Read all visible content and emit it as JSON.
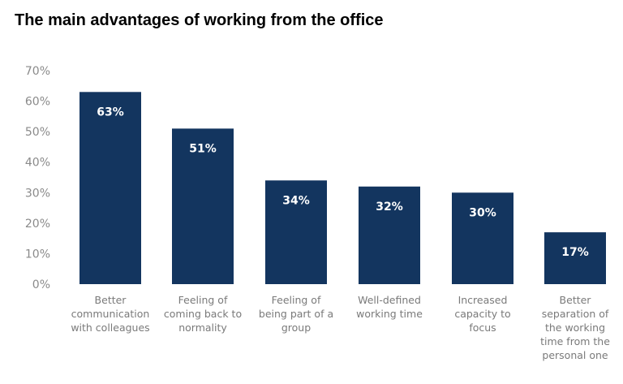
{
  "chart_data": {
    "type": "bar",
    "title": "The main advantages of working from the office",
    "xlabel": "",
    "ylabel": "",
    "ylim": [
      0,
      70
    ],
    "yticks": [
      "0%",
      "10%",
      "20%",
      "30%",
      "40%",
      "50%",
      "60%",
      "70%"
    ],
    "grid": false,
    "bar_color": "#13355f",
    "categories": [
      [
        "Better",
        "communication",
        "with colleagues"
      ],
      [
        "Feeling of",
        "coming back to",
        "normality"
      ],
      [
        "Feeling of",
        "being part of a",
        "group"
      ],
      [
        "Well-defined",
        "working time"
      ],
      [
        "Increased",
        "capacity to",
        "focus"
      ],
      [
        "Better",
        "separation of",
        "the working",
        "time from the",
        "personal one"
      ]
    ],
    "values": [
      63,
      51,
      34,
      32,
      30,
      17
    ],
    "data_labels": [
      "63%",
      "51%",
      "34%",
      "32%",
      "30%",
      "17%"
    ]
  }
}
